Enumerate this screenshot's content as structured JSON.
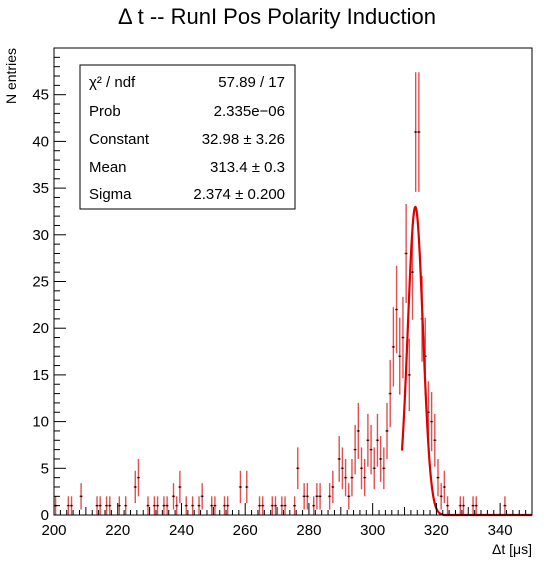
{
  "chart_data": {
    "type": "scatter",
    "title": "Δ t -- RunI Pos Polarity Induction",
    "xlabel": "Δt [μs]",
    "ylabel": "N entries",
    "xlim": [
      200,
      350
    ],
    "ylim": [
      0,
      50
    ],
    "x_ticks": [
      "200",
      "220",
      "240",
      "260",
      "280",
      "300",
      "320",
      "340"
    ],
    "y_ticks": [
      "0",
      "5",
      "10",
      "15",
      "20",
      "25",
      "30",
      "35",
      "40",
      "45"
    ],
    "grid": false,
    "marker_color": "#000000",
    "error_color": "#e05050",
    "fit_color": "#dd0000",
    "stats": {
      "rows": [
        {
          "label": "χ² / ndf",
          "value": "57.89 / 17"
        },
        {
          "label": "Prob",
          "value": "2.335e−06"
        },
        {
          "label": "Constant",
          "value": "32.98 ± 3.26"
        },
        {
          "label": "Mean",
          "value": "313.4 ± 0.3"
        },
        {
          "label": "Sigma",
          "value": "2.374 ± 0.200"
        }
      ]
    },
    "fit": {
      "function": "gaus",
      "constant": 32.98,
      "mean": 313.4,
      "sigma": 2.374,
      "range": [
        309.2,
        322
      ]
    },
    "bin_width": 1,
    "points": [
      {
        "x": 200.5,
        "y": 1
      },
      {
        "x": 204.5,
        "y": 1
      },
      {
        "x": 205.5,
        "y": 1
      },
      {
        "x": 208.5,
        "y": 2
      },
      {
        "x": 213.5,
        "y": 1
      },
      {
        "x": 214.5,
        "y": 1
      },
      {
        "x": 216.5,
        "y": 1
      },
      {
        "x": 217.5,
        "y": 1
      },
      {
        "x": 220.5,
        "y": 1
      },
      {
        "x": 222.5,
        "y": 1
      },
      {
        "x": 225.5,
        "y": 3
      },
      {
        "x": 226.5,
        "y": 4
      },
      {
        "x": 229.5,
        "y": 1
      },
      {
        "x": 231.5,
        "y": 1
      },
      {
        "x": 232.5,
        "y": 1
      },
      {
        "x": 234.5,
        "y": 1
      },
      {
        "x": 235.5,
        "y": 1
      },
      {
        "x": 237.5,
        "y": 2
      },
      {
        "x": 238.5,
        "y": 1
      },
      {
        "x": 239.5,
        "y": 3
      },
      {
        "x": 241.5,
        "y": 1
      },
      {
        "x": 243.5,
        "y": 1
      },
      {
        "x": 245.5,
        "y": 1
      },
      {
        "x": 246.5,
        "y": 2
      },
      {
        "x": 249.5,
        "y": 1
      },
      {
        "x": 250.5,
        "y": 1
      },
      {
        "x": 253.5,
        "y": 1
      },
      {
        "x": 254.5,
        "y": 1
      },
      {
        "x": 258.5,
        "y": 3
      },
      {
        "x": 260.5,
        "y": 3
      },
      {
        "x": 264.5,
        "y": 1
      },
      {
        "x": 265.5,
        "y": 1
      },
      {
        "x": 268.5,
        "y": 1
      },
      {
        "x": 269.5,
        "y": 1
      },
      {
        "x": 271.5,
        "y": 1
      },
      {
        "x": 272.5,
        "y": 1
      },
      {
        "x": 275.5,
        "y": 1
      },
      {
        "x": 276.5,
        "y": 5
      },
      {
        "x": 278.5,
        "y": 2
      },
      {
        "x": 279.5,
        "y": 2
      },
      {
        "x": 281.5,
        "y": 1
      },
      {
        "x": 282.5,
        "y": 2
      },
      {
        "x": 283.5,
        "y": 2
      },
      {
        "x": 286.5,
        "y": 2
      },
      {
        "x": 287.5,
        "y": 3
      },
      {
        "x": 289.5,
        "y": 6
      },
      {
        "x": 290.5,
        "y": 5
      },
      {
        "x": 291.5,
        "y": 4
      },
      {
        "x": 292.5,
        "y": 2
      },
      {
        "x": 293.5,
        "y": 4
      },
      {
        "x": 294.5,
        "y": 7
      },
      {
        "x": 295.5,
        "y": 9
      },
      {
        "x": 296.5,
        "y": 5
      },
      {
        "x": 297.5,
        "y": 4
      },
      {
        "x": 298.5,
        "y": 8
      },
      {
        "x": 299.5,
        "y": 7
      },
      {
        "x": 300.5,
        "y": 5
      },
      {
        "x": 301.5,
        "y": 8
      },
      {
        "x": 302.5,
        "y": 6
      },
      {
        "x": 303.5,
        "y": 5
      },
      {
        "x": 304.5,
        "y": 9
      },
      {
        "x": 305.5,
        "y": 13
      },
      {
        "x": 306.5,
        "y": 18
      },
      {
        "x": 307.5,
        "y": 22
      },
      {
        "x": 308.5,
        "y": 17
      },
      {
        "x": 309.5,
        "y": 19
      },
      {
        "x": 310.5,
        "y": 28
      },
      {
        "x": 311.5,
        "y": 15
      },
      {
        "x": 312.5,
        "y": 26
      },
      {
        "x": 313.5,
        "y": 41
      },
      {
        "x": 314.5,
        "y": 41
      },
      {
        "x": 315.5,
        "y": 21
      },
      {
        "x": 316.5,
        "y": 17
      },
      {
        "x": 317.5,
        "y": 11
      },
      {
        "x": 318.5,
        "y": 10
      },
      {
        "x": 319.5,
        "y": 8
      },
      {
        "x": 320.5,
        "y": 4
      },
      {
        "x": 321.5,
        "y": 2
      },
      {
        "x": 322.5,
        "y": 3
      },
      {
        "x": 323.5,
        "y": 1
      },
      {
        "x": 327.5,
        "y": 1
      },
      {
        "x": 328.5,
        "y": 1
      },
      {
        "x": 331.5,
        "y": 1
      },
      {
        "x": 332.5,
        "y": 1
      },
      {
        "x": 341.5,
        "y": 1
      }
    ]
  }
}
